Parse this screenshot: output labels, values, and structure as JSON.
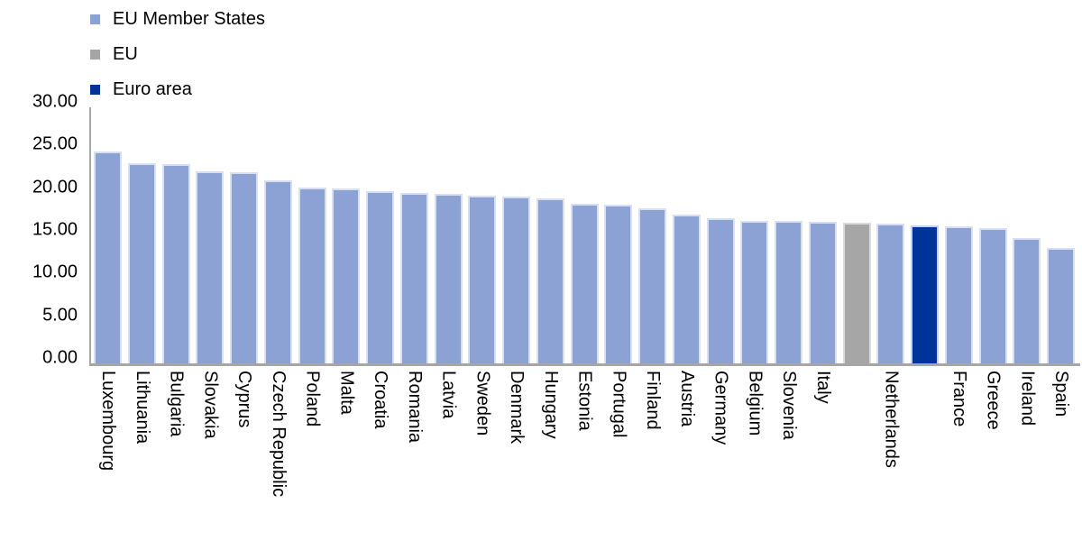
{
  "chart_data": {
    "type": "bar",
    "title": "",
    "xlabel": "",
    "ylabel": "",
    "ylim": [
      0,
      30
    ],
    "ytick_labels": [
      "0.00",
      "5.00",
      "10.00",
      "15.00",
      "20.00",
      "25.00",
      "30.00"
    ],
    "grid": false,
    "legend_position": "top-left",
    "axis_color": "#A6A6A6",
    "text_color": "#000000",
    "background_color": "#FFFFFF",
    "series": [
      {
        "name": "EU Member States",
        "key": "member",
        "color": "#8CA1D4",
        "border_color": "#D8DFF1"
      },
      {
        "name": "EU",
        "key": "eu",
        "color": "#A6A6A6",
        "border_color": "#DBDBDB"
      },
      {
        "name": "Euro area",
        "key": "euro",
        "color": "#003399",
        "border_color": "#C7D1EA"
      }
    ],
    "points": [
      {
        "name": "Luxembourg",
        "axis_label": "Luxembourg",
        "series": "member",
        "value": 24.9
      },
      {
        "name": "Lithuania",
        "axis_label": "Lithuania",
        "series": "member",
        "value": 23.6
      },
      {
        "name": "Bulgaria",
        "axis_label": "Bulgaria",
        "series": "member",
        "value": 23.5
      },
      {
        "name": "Slovakia",
        "axis_label": "Slovakia",
        "series": "member",
        "value": 22.6
      },
      {
        "name": "Cyprus",
        "axis_label": "Cyprus",
        "series": "member",
        "value": 22.5
      },
      {
        "name": "Czech Republic",
        "axis_label": "Czech Republic",
        "series": "member",
        "value": 21.6
      },
      {
        "name": "Poland",
        "axis_label": "Poland",
        "series": "member",
        "value": 20.7
      },
      {
        "name": "Malta",
        "axis_label": "Malta",
        "series": "member",
        "value": 20.6
      },
      {
        "name": "Croatia",
        "axis_label": "Croatia",
        "series": "member",
        "value": 20.3
      },
      {
        "name": "Romania",
        "axis_label": "Romania",
        "series": "member",
        "value": 20.1
      },
      {
        "name": "Latvia",
        "axis_label": "Latvia",
        "series": "member",
        "value": 20.0
      },
      {
        "name": "Sweden",
        "axis_label": "Sweden",
        "series": "member",
        "value": 19.8
      },
      {
        "name": "Denmark",
        "axis_label": "Denmark",
        "series": "member",
        "value": 19.7
      },
      {
        "name": "Hungary",
        "axis_label": "Hungary",
        "series": "member",
        "value": 19.4
      },
      {
        "name": "Estonia",
        "axis_label": "Estonia",
        "series": "member",
        "value": 18.8
      },
      {
        "name": "Portugal",
        "axis_label": "Portugal",
        "series": "member",
        "value": 18.7
      },
      {
        "name": "Finland",
        "axis_label": "Finland",
        "series": "member",
        "value": 18.3
      },
      {
        "name": "Austria",
        "axis_label": "Austria",
        "series": "member",
        "value": 17.5
      },
      {
        "name": "Germany",
        "axis_label": "Germany",
        "series": "member",
        "value": 17.1
      },
      {
        "name": "Belgium",
        "axis_label": "Belgium",
        "series": "member",
        "value": 16.8
      },
      {
        "name": "Slovenia",
        "axis_label": "Slovenia",
        "series": "member",
        "value": 16.8
      },
      {
        "name": "Italy",
        "axis_label": "Italy",
        "series": "member",
        "value": 16.7
      },
      {
        "name": "EU",
        "axis_label": "",
        "series": "eu",
        "value": 16.6
      },
      {
        "name": "Netherlands",
        "axis_label": "Netherlands",
        "series": "member",
        "value": 16.5
      },
      {
        "name": "Euro area",
        "axis_label": "",
        "series": "euro",
        "value": 16.3
      },
      {
        "name": "France",
        "axis_label": "France",
        "series": "member",
        "value": 16.2
      },
      {
        "name": "Greece",
        "axis_label": "Greece",
        "series": "member",
        "value": 15.9
      },
      {
        "name": "Ireland",
        "axis_label": "Ireland",
        "series": "member",
        "value": 14.8
      },
      {
        "name": "Spain",
        "axis_label": "Spain",
        "series": "member",
        "value": 13.6
      }
    ]
  }
}
